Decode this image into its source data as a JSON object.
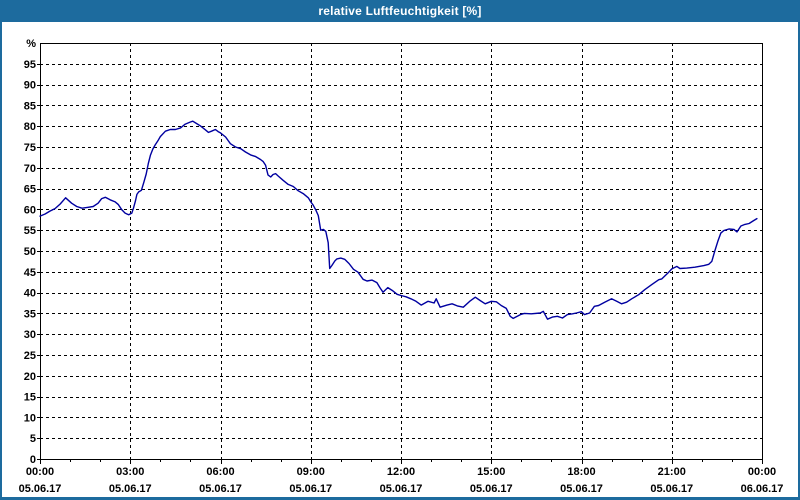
{
  "window": {
    "title": "relative Luftfeuchtigkeit [%]",
    "titlebar_bg": "#1d6b9e",
    "border_color": "#1d6b9e"
  },
  "chart_data": {
    "type": "line",
    "title": "relative Luftfeuchtigkeit [%]",
    "unit_label": "%",
    "xlabel": "",
    "ylabel": "%",
    "xlim_hours": [
      0,
      24
    ],
    "ylim": [
      0,
      100
    ],
    "grid": {
      "dashed": true,
      "color": "#000000"
    },
    "frame_color": "#000000",
    "line_color": "#0000a0",
    "y_ticks": [
      0,
      5,
      10,
      15,
      20,
      25,
      30,
      35,
      40,
      45,
      50,
      55,
      60,
      65,
      70,
      75,
      80,
      85,
      90,
      95
    ],
    "x_ticks": [
      {
        "hour": 0,
        "time": "00:00",
        "date": "05.06.17"
      },
      {
        "hour": 3,
        "time": "03:00",
        "date": "05.06.17"
      },
      {
        "hour": 6,
        "time": "06:00",
        "date": "05.06.17"
      },
      {
        "hour": 9,
        "time": "09:00",
        "date": "05.06.17"
      },
      {
        "hour": 12,
        "time": "12:00",
        "date": "05.06.17"
      },
      {
        "hour": 15,
        "time": "15:00",
        "date": "05.06.17"
      },
      {
        "hour": 18,
        "time": "18:00",
        "date": "05.06.17"
      },
      {
        "hour": 21,
        "time": "21:00",
        "date": "05.06.17"
      },
      {
        "hour": 24,
        "time": "00:00",
        "date": "06.06.17"
      }
    ],
    "minor_tick_every_hours": 1,
    "series": [
      {
        "name": "relative Luftfeuchtigkeit",
        "unit": "%",
        "points": [
          [
            0,
            58.4
          ],
          [
            0.17,
            58.9
          ],
          [
            0.33,
            59.6
          ],
          [
            0.5,
            60.2
          ],
          [
            0.67,
            61.3
          ],
          [
            0.85,
            62.8
          ],
          [
            1.05,
            61.5
          ],
          [
            1.22,
            60.7
          ],
          [
            1.4,
            60.3
          ],
          [
            1.6,
            60.5
          ],
          [
            1.77,
            60.7
          ],
          [
            1.93,
            61.5
          ],
          [
            2.05,
            62.6
          ],
          [
            2.17,
            62.9
          ],
          [
            2.33,
            62.3
          ],
          [
            2.5,
            61.8
          ],
          [
            2.6,
            61.2
          ],
          [
            2.72,
            59.9
          ],
          [
            2.83,
            59.1
          ],
          [
            2.95,
            58.7
          ],
          [
            3.05,
            59.1
          ],
          [
            3.11,
            60.4
          ],
          [
            3.17,
            62
          ],
          [
            3.22,
            63.6
          ],
          [
            3.28,
            64.2
          ],
          [
            3.37,
            64.6
          ],
          [
            3.45,
            66.5
          ],
          [
            3.53,
            68.5
          ],
          [
            3.6,
            71
          ],
          [
            3.67,
            73
          ],
          [
            3.75,
            74.5
          ],
          [
            3.83,
            75.5
          ],
          [
            3.92,
            76.5
          ],
          [
            4,
            77.5
          ],
          [
            4.17,
            78.8
          ],
          [
            4.33,
            79.2
          ],
          [
            4.5,
            79.2
          ],
          [
            4.67,
            79.6
          ],
          [
            4.83,
            80.5
          ],
          [
            5,
            81
          ],
          [
            5.08,
            81.2
          ],
          [
            5.17,
            80.8
          ],
          [
            5.33,
            80.1
          ],
          [
            5.5,
            79.1
          ],
          [
            5.6,
            78.5
          ],
          [
            5.7,
            78.8
          ],
          [
            5.83,
            79.2
          ],
          [
            5.92,
            78.7
          ],
          [
            6,
            78.4
          ],
          [
            6.17,
            77.4
          ],
          [
            6.33,
            75.8
          ],
          [
            6.5,
            75
          ],
          [
            6.67,
            74.6
          ],
          [
            6.83,
            73.8
          ],
          [
            7,
            73.1
          ],
          [
            7.17,
            72.7
          ],
          [
            7.33,
            72
          ],
          [
            7.42,
            71.5
          ],
          [
            7.5,
            70.6
          ],
          [
            7.58,
            68.3
          ],
          [
            7.67,
            67.8
          ],
          [
            7.75,
            68.4
          ],
          [
            7.83,
            68.6
          ],
          [
            7.92,
            68
          ],
          [
            8.08,
            67
          ],
          [
            8.25,
            66
          ],
          [
            8.42,
            65.5
          ],
          [
            8.58,
            64.5
          ],
          [
            8.75,
            63.8
          ],
          [
            8.92,
            62.8
          ],
          [
            9,
            61.8
          ],
          [
            9.08,
            61
          ],
          [
            9.17,
            59.8
          ],
          [
            9.25,
            58.5
          ],
          [
            9.33,
            55
          ],
          [
            9.42,
            55.2
          ],
          [
            9.5,
            54.7
          ],
          [
            9.58,
            52
          ],
          [
            9.63,
            45.8
          ],
          [
            9.7,
            46.5
          ],
          [
            9.8,
            47.6
          ],
          [
            9.87,
            48.1
          ],
          [
            10,
            48.3
          ],
          [
            10.13,
            48
          ],
          [
            10.27,
            47
          ],
          [
            10.42,
            45.6
          ],
          [
            10.57,
            44.9
          ],
          [
            10.74,
            43.2
          ],
          [
            10.87,
            42.8
          ],
          [
            11.04,
            43
          ],
          [
            11.2,
            42.4
          ],
          [
            11.3,
            41.2
          ],
          [
            11.4,
            40.1
          ],
          [
            11.56,
            41.2
          ],
          [
            11.73,
            40.4
          ],
          [
            11.87,
            39.6
          ],
          [
            12,
            39.3
          ],
          [
            12.17,
            39
          ],
          [
            12.33,
            38.5
          ],
          [
            12.5,
            37.9
          ],
          [
            12.67,
            37
          ],
          [
            12.9,
            37.9
          ],
          [
            13.1,
            37.5
          ],
          [
            13.17,
            38.5
          ],
          [
            13.3,
            36.5
          ],
          [
            13.53,
            37
          ],
          [
            13.7,
            37.3
          ],
          [
            13.87,
            36.8
          ],
          [
            14.07,
            36.5
          ],
          [
            14.3,
            38
          ],
          [
            14.47,
            38.9
          ],
          [
            14.63,
            38.1
          ],
          [
            14.8,
            37.3
          ],
          [
            15,
            37.9
          ],
          [
            15.17,
            37.8
          ],
          [
            15.33,
            36.9
          ],
          [
            15.5,
            36.2
          ],
          [
            15.63,
            34.3
          ],
          [
            15.73,
            33.8
          ],
          [
            15.97,
            34.7
          ],
          [
            16.1,
            35
          ],
          [
            16.33,
            34.9
          ],
          [
            16.63,
            35.1
          ],
          [
            16.73,
            35.5
          ],
          [
            16.87,
            33.6
          ],
          [
            17.03,
            34.1
          ],
          [
            17.2,
            34.3
          ],
          [
            17.37,
            33.9
          ],
          [
            17.53,
            34.7
          ],
          [
            17.7,
            34.9
          ],
          [
            17.83,
            35.1
          ],
          [
            18,
            35.4
          ],
          [
            18.1,
            34.7
          ],
          [
            18.27,
            35.1
          ],
          [
            18.43,
            36.7
          ],
          [
            18.57,
            36.9
          ],
          [
            18.77,
            37.7
          ],
          [
            19,
            38.5
          ],
          [
            19.17,
            37.9
          ],
          [
            19.33,
            37.3
          ],
          [
            19.5,
            37.7
          ],
          [
            19.67,
            38.5
          ],
          [
            19.9,
            39.5
          ],
          [
            20.1,
            40.7
          ],
          [
            20.33,
            41.9
          ],
          [
            20.57,
            43.1
          ],
          [
            20.67,
            43.3
          ],
          [
            20.9,
            44.9
          ],
          [
            21,
            45.7
          ],
          [
            21.17,
            46.3
          ],
          [
            21.27,
            45.8
          ],
          [
            21.5,
            45.9
          ],
          [
            21.77,
            46.1
          ],
          [
            22.07,
            46.5
          ],
          [
            22.23,
            46.8
          ],
          [
            22.33,
            47.5
          ],
          [
            22.43,
            50
          ],
          [
            22.53,
            52.3
          ],
          [
            22.63,
            54.3
          ],
          [
            22.73,
            54.9
          ],
          [
            22.9,
            55.3
          ],
          [
            23.07,
            55.2
          ],
          [
            23.17,
            54.6
          ],
          [
            23.3,
            56
          ],
          [
            23.43,
            56.4
          ],
          [
            23.57,
            56.6
          ],
          [
            23.7,
            57.2
          ],
          [
            23.83,
            57.8
          ]
        ]
      }
    ]
  }
}
